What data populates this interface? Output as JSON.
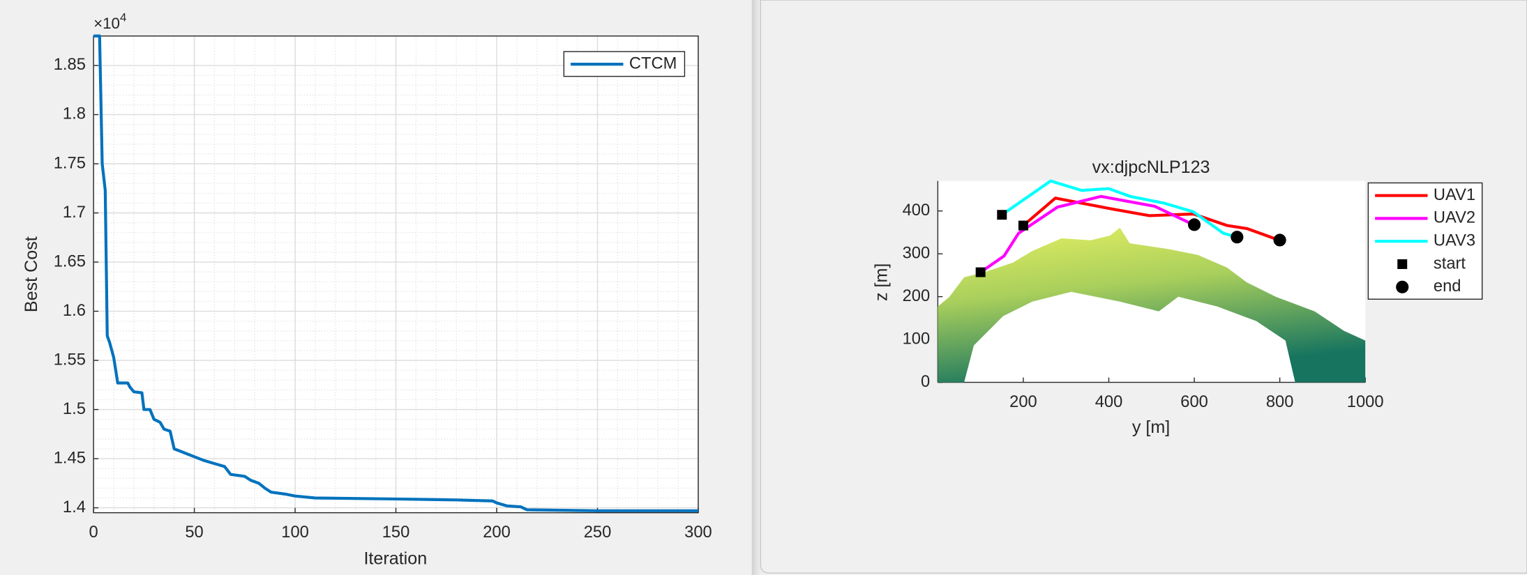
{
  "chart_data": [
    {
      "type": "line",
      "xlabel": "Iteration",
      "ylabel": "Best Cost",
      "y_multiplier": {
        "base": "×10",
        "exponent": "4"
      },
      "x": [
        0,
        3,
        4.3,
        5.8,
        6.8,
        8,
        10,
        12,
        17,
        18,
        20,
        24,
        25,
        28,
        30,
        33,
        35,
        38,
        40,
        45,
        50,
        55,
        60,
        65,
        68,
        75,
        78,
        82,
        85,
        88,
        95,
        100,
        110,
        150,
        180,
        198,
        200,
        205,
        212,
        215,
        250,
        300
      ],
      "series": [
        {
          "name": "CTCM",
          "color": "#0072bd",
          "values": [
            1.88,
            1.88,
            1.75,
            1.723,
            1.575,
            1.568,
            1.553,
            1.527,
            1.527,
            1.523,
            1.518,
            1.517,
            1.5,
            1.5,
            1.49,
            1.487,
            1.48,
            1.478,
            1.46,
            1.456,
            1.452,
            1.448,
            1.445,
            1.442,
            1.434,
            1.432,
            1.428,
            1.425,
            1.42,
            1.416,
            1.414,
            1.412,
            1.41,
            1.409,
            1.408,
            1.407,
            1.405,
            1.402,
            1.401,
            1.398,
            1.397,
            1.397
          ]
        }
      ],
      "xlim": [
        0,
        300
      ],
      "xticks": [
        0,
        50,
        100,
        150,
        200,
        250,
        300
      ],
      "ylim": [
        1.395,
        1.88
      ],
      "yticks": [
        1.4,
        1.45,
        1.5,
        1.55,
        1.6,
        1.65,
        1.7,
        1.75,
        1.8,
        1.85
      ],
      "grid": true,
      "minor_grid": true,
      "legend": "northeast"
    },
    {
      "type": "line",
      "title": "vx:djpcNLP123",
      "xlabel": "y [m]",
      "ylabel": "z [m]",
      "series": [
        {
          "name": "UAV1",
          "color": "#ff0000",
          "x": [
            200,
            275,
            405,
            495,
            598,
            677,
            723,
            798
          ],
          "values": [
            366,
            430,
            405,
            389,
            393,
            366,
            359,
            332
          ]
        },
        {
          "name": "UAV2",
          "color": "#ff00ff",
          "x": [
            100,
            155,
            189,
            280,
            382,
            507,
            598
          ],
          "values": [
            257,
            295,
            348,
            409,
            434,
            411,
            368
          ]
        },
        {
          "name": "UAV3",
          "color": "#00ffff",
          "x": [
            150,
            264,
            336,
            400,
            450,
            530,
            598,
            668,
            700
          ],
          "values": [
            391,
            470,
            448,
            452,
            434,
            418,
            398,
            348,
            339
          ]
        },
        {
          "name": "start",
          "color": "#000000",
          "marker": "square",
          "x": [
            150,
            200,
            100
          ],
          "values": [
            391,
            366,
            257
          ]
        },
        {
          "name": "end",
          "color": "#000000",
          "marker": "circle",
          "x": [
            800,
            600,
            700
          ],
          "values": [
            332,
            368,
            339
          ]
        }
      ],
      "xlim": [
        0,
        1000
      ],
      "xticks": [
        200,
        400,
        600,
        800,
        1000
      ],
      "ylim": [
        0,
        470
      ],
      "yticks": [
        0,
        100,
        200,
        300,
        400
      ],
      "grid": false,
      "legend": "northeastoutside"
    }
  ]
}
